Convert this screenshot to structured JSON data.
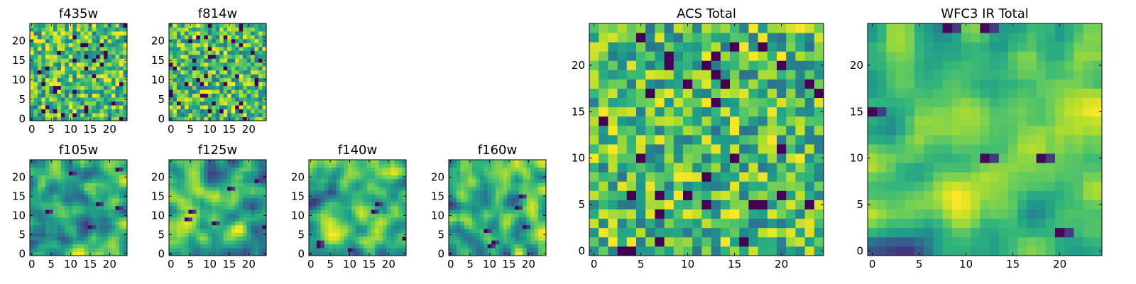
{
  "colormap": "viridis",
  "colors": {
    "dark": "#440154",
    "mid": "#21918c",
    "bright": "#fde725"
  },
  "chart_data": [
    {
      "type": "heatmap",
      "title": "f435w",
      "grid_size": [
        25,
        25
      ],
      "xlim": [
        0,
        24
      ],
      "ylim": [
        0,
        24
      ],
      "xticks": [
        0,
        5,
        10,
        15,
        20
      ],
      "yticks": [
        0,
        5,
        10,
        15,
        20
      ],
      "pattern": "pixel noise",
      "seed": 11
    },
    {
      "type": "heatmap",
      "title": "f814w",
      "grid_size": [
        25,
        25
      ],
      "xlim": [
        0,
        24
      ],
      "ylim": [
        0,
        24
      ],
      "xticks": [
        0,
        5,
        10,
        15,
        20
      ],
      "yticks": [
        0,
        5,
        10,
        15,
        20
      ],
      "pattern": "pixel noise",
      "seed": 23
    },
    {
      "type": "heatmap",
      "title": "ACS Total",
      "grid_size": [
        25,
        25
      ],
      "xlim": [
        0,
        24
      ],
      "ylim": [
        0,
        24
      ],
      "xticks": [
        0,
        5,
        10,
        15,
        20
      ],
      "yticks": [
        0,
        5,
        10,
        15,
        20
      ],
      "pattern": "pixel noise",
      "seed": 37
    },
    {
      "type": "heatmap",
      "title": "f105w",
      "grid_size": [
        25,
        25
      ],
      "xlim": [
        0,
        24
      ],
      "ylim": [
        0,
        24
      ],
      "xticks": [
        0,
        5,
        10,
        15,
        20
      ],
      "yticks": [
        0,
        5,
        10,
        15,
        20
      ],
      "pattern": "smooth",
      "seed": 41
    },
    {
      "type": "heatmap",
      "title": "f125w",
      "grid_size": [
        25,
        25
      ],
      "xlim": [
        0,
        24
      ],
      "ylim": [
        0,
        24
      ],
      "xticks": [
        0,
        5,
        10,
        15,
        20
      ],
      "yticks": [
        0,
        5,
        10,
        15,
        20
      ],
      "pattern": "smooth",
      "seed": 53
    },
    {
      "type": "heatmap",
      "title": "f140w",
      "grid_size": [
        25,
        25
      ],
      "xlim": [
        0,
        24
      ],
      "ylim": [
        0,
        24
      ],
      "xticks": [
        0,
        5,
        10,
        15,
        20
      ],
      "yticks": [
        0,
        5,
        10,
        15,
        20
      ],
      "pattern": "smooth",
      "seed": 67
    },
    {
      "type": "heatmap",
      "title": "f160w",
      "grid_size": [
        25,
        25
      ],
      "xlim": [
        0,
        24
      ],
      "ylim": [
        0,
        24
      ],
      "xticks": [
        0,
        5,
        10,
        15,
        20
      ],
      "yticks": [
        0,
        5,
        10,
        15,
        20
      ],
      "pattern": "smooth",
      "seed": 79
    },
    {
      "type": "heatmap",
      "title": "WFC3 IR Total",
      "grid_size": [
        25,
        25
      ],
      "xlim": [
        0,
        24
      ],
      "ylim": [
        0,
        24
      ],
      "xticks": [
        0,
        5,
        10,
        15,
        20
      ],
      "yticks": [
        0,
        5,
        10,
        15,
        20
      ],
      "pattern": "smooth",
      "seed": 97
    }
  ]
}
